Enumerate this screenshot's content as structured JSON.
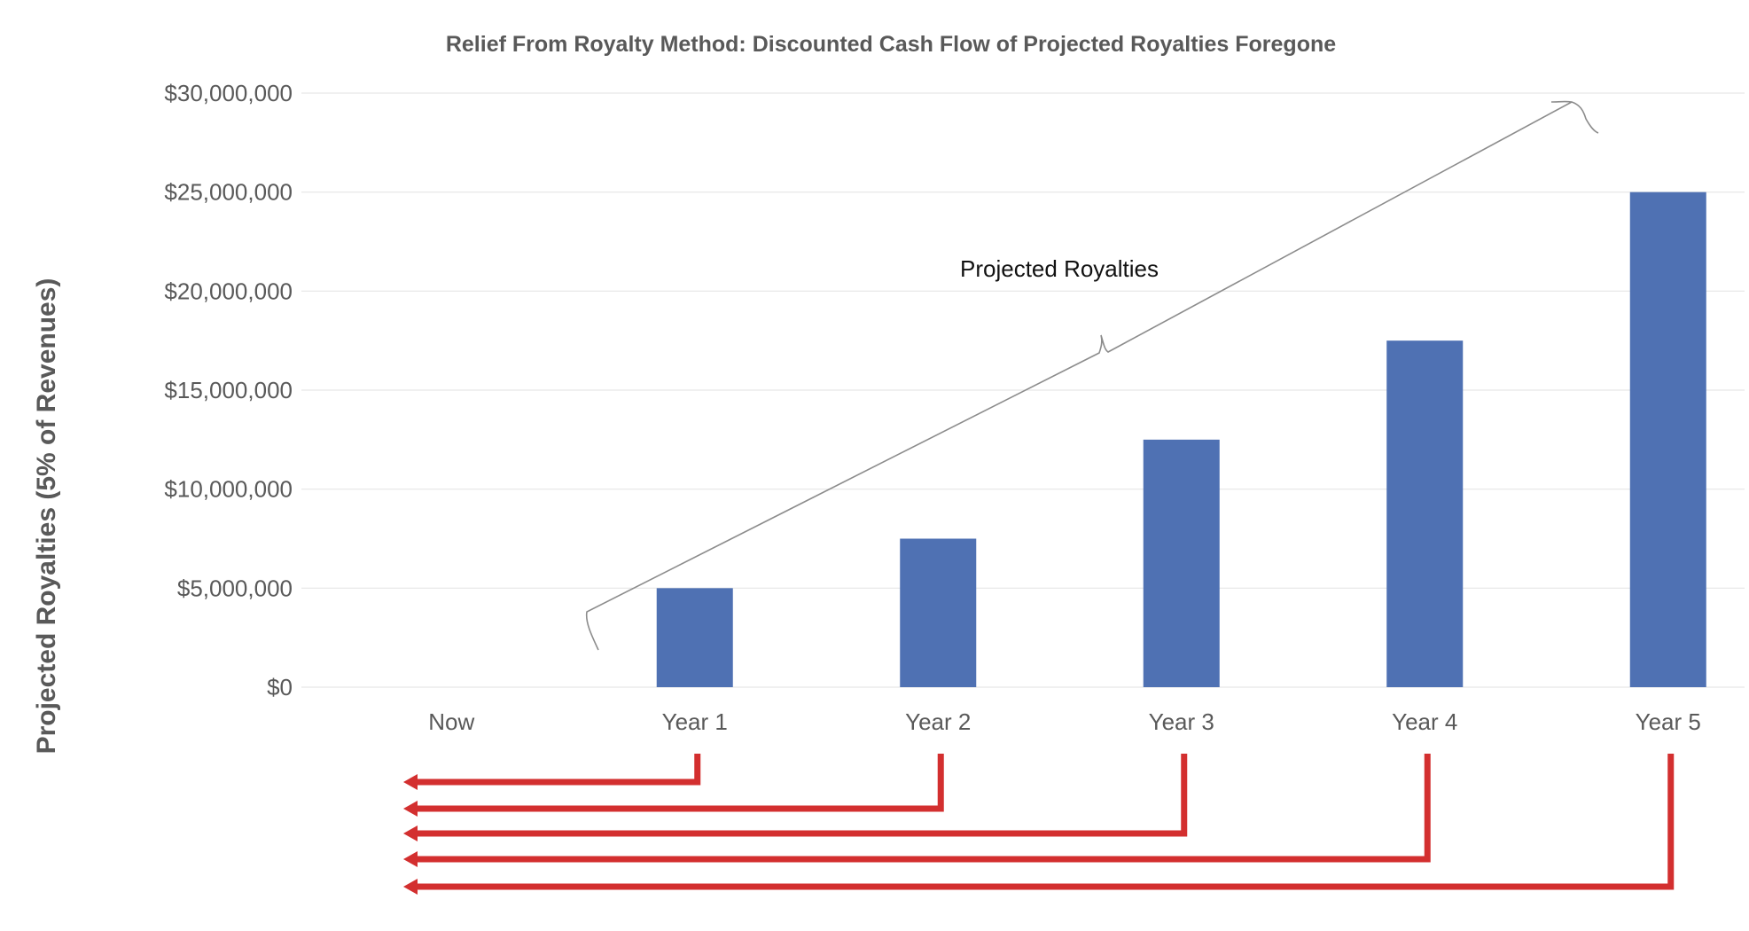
{
  "chart_data": {
    "type": "bar",
    "title": "Relief From Royalty Method: Discounted Cash Flow of Projected Royalties Foregone",
    "xlabel": "",
    "ylabel": "Projected Royalties (5% of Revenues)",
    "categories": [
      "Now",
      "Year 1",
      "Year 2",
      "Year 3",
      "Year 4",
      "Year 5"
    ],
    "values": [
      0,
      5000000,
      7500000,
      12500000,
      17500000,
      25000000
    ],
    "ylim": [
      0,
      30000000
    ],
    "yticks": [
      0,
      5000000,
      10000000,
      15000000,
      20000000,
      25000000,
      30000000
    ],
    "ytick_labels": [
      "$0",
      "$5,000,000",
      "$10,000,000",
      "$15,000,000",
      "$20,000,000",
      "$25,000,000",
      "$30,000,000"
    ],
    "grid": true,
    "annotations": [
      {
        "text": "Projected Royalties",
        "kind": "brace",
        "spans": [
          "Year 1",
          "Year 5"
        ]
      }
    ],
    "discount_arrows": {
      "from": [
        "Year 1",
        "Year 2",
        "Year 3",
        "Year 4",
        "Year 5"
      ],
      "to": "Now"
    },
    "colors": {
      "bar": "#4f71b3",
      "grid": "#e6e6e6",
      "axis_text": "#595959",
      "arrow": "#d32f2f",
      "brace": "#8c8c8c"
    }
  }
}
